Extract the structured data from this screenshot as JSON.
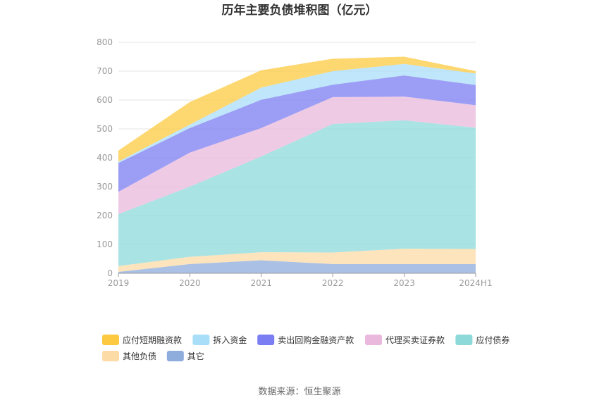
{
  "chart_data": {
    "type": "area",
    "stacked": true,
    "title": "历年主要负债堆积图（亿元）",
    "x": [
      "2019",
      "2020",
      "2021",
      "2022",
      "2023",
      "2024H1"
    ],
    "ylim": [
      0,
      800
    ],
    "yticks": [
      "0",
      "100",
      "200",
      "300",
      "400",
      "500",
      "600",
      "700",
      "800"
    ],
    "grid": true,
    "legend_position": "bottom",
    "series": [
      {
        "name": "其它",
        "color": "#8eacdc",
        "values": [
          5,
          32,
          45,
          32,
          32,
          32
        ]
      },
      {
        "name": "其他负债",
        "color": "#fddba6",
        "values": [
          20,
          25,
          28,
          40,
          53,
          52
        ]
      },
      {
        "name": "应付债券",
        "color": "#8dd9da",
        "values": [
          180,
          243,
          332,
          445,
          445,
          420
        ]
      },
      {
        "name": "代理买卖证券款",
        "color": "#eab8dc",
        "values": [
          77,
          118,
          98,
          93,
          82,
          78
        ]
      },
      {
        "name": "卖出回购金融资产款",
        "color": "#7b7ef2",
        "values": [
          100,
          85,
          98,
          43,
          73,
          70
        ]
      },
      {
        "name": "拆入资金",
        "color": "#a9def8",
        "values": [
          5,
          12,
          42,
          47,
          40,
          40
        ]
      },
      {
        "name": "应付短期融资款",
        "color": "#fcc940",
        "values": [
          38,
          78,
          60,
          43,
          25,
          8
        ]
      }
    ],
    "legend_order": [
      "应付短期融资款",
      "拆入资金",
      "卖出回购金融资产款",
      "代理买卖证券款",
      "应付债券",
      "其他负债",
      "其它"
    ]
  },
  "source": "数据来源：恒生聚源"
}
